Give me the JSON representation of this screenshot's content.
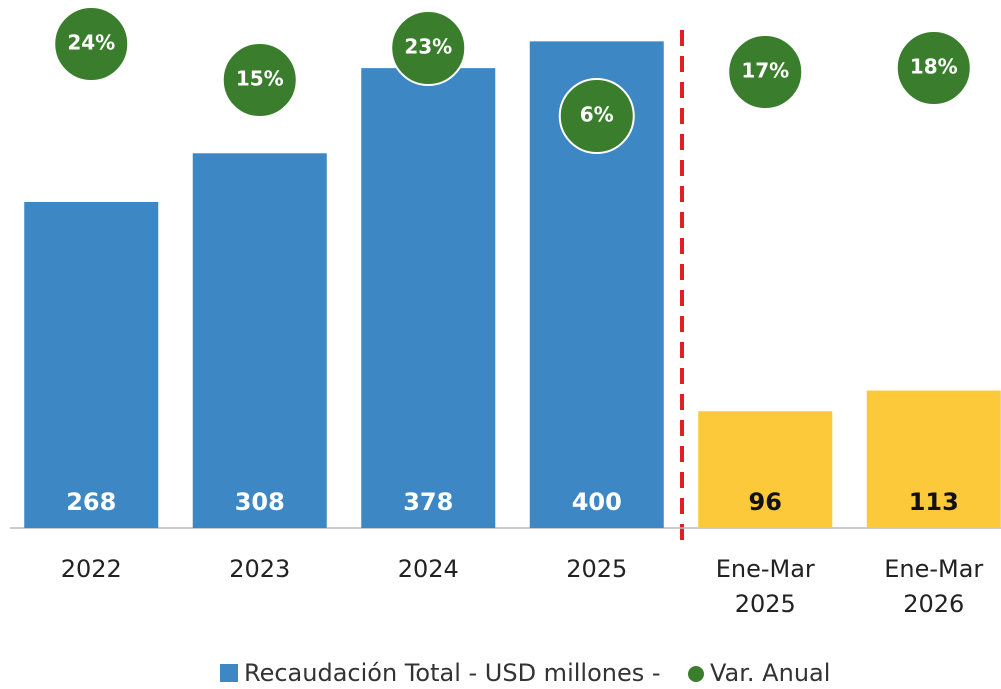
{
  "chart_data": {
    "type": "bar",
    "categories": [
      "2022",
      "2023",
      "2024",
      "2025",
      "Ene-Mar 2025",
      "Ene-Mar 2026"
    ],
    "ylim": [
      0,
      434
    ],
    "y2lim": [
      -97,
      35
    ],
    "series": [
      {
        "name": "Recaudación Total - USD millones -",
        "color": "#3d87c4",
        "colors": [
          "#3d87c4",
          "#3d87c4",
          "#3d87c4",
          "#3d87c4",
          "#fcc93a",
          "#fcc93a"
        ],
        "values": [
          268,
          308,
          378,
          400,
          96,
          113
        ]
      },
      {
        "name": "Var. Anual",
        "color": "#3a7d2c",
        "type": "scatter",
        "axis": "y2",
        "values": [
          24,
          15,
          23,
          6,
          17,
          18
        ],
        "value_labels": [
          "24%",
          "15%",
          "23%",
          "6%",
          "17%",
          "18%"
        ]
      }
    ]
  }
}
